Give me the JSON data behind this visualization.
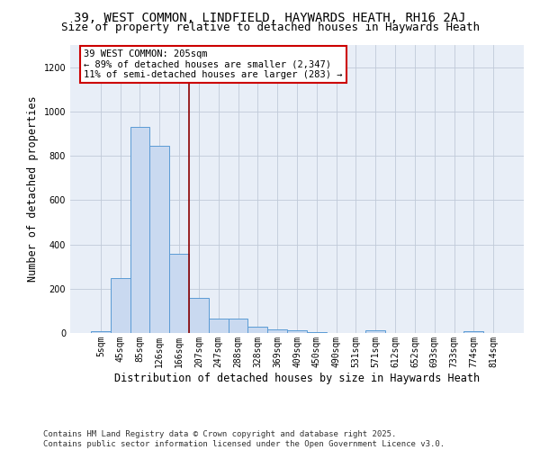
{
  "title_line1": "39, WEST COMMON, LINDFIELD, HAYWARDS HEATH, RH16 2AJ",
  "title_line2": "Size of property relative to detached houses in Haywards Heath",
  "xlabel": "Distribution of detached houses by size in Haywards Heath",
  "ylabel": "Number of detached properties",
  "categories": [
    "5sqm",
    "45sqm",
    "85sqm",
    "126sqm",
    "166sqm",
    "207sqm",
    "247sqm",
    "288sqm",
    "328sqm",
    "369sqm",
    "409sqm",
    "450sqm",
    "490sqm",
    "531sqm",
    "571sqm",
    "612sqm",
    "652sqm",
    "693sqm",
    "733sqm",
    "774sqm",
    "814sqm"
  ],
  "values": [
    8,
    248,
    930,
    845,
    358,
    158,
    65,
    63,
    30,
    15,
    12,
    5,
    0,
    0,
    12,
    0,
    0,
    0,
    0,
    10,
    0
  ],
  "bar_color": "#c9d9f0",
  "bar_edge_color": "#5b9bd5",
  "vline_x": 4.5,
  "vline_color": "#8b0000",
  "annotation_text": "39 WEST COMMON: 205sqm\n← 89% of detached houses are smaller (2,347)\n11% of semi-detached houses are larger (283) →",
  "annotation_box_color": "white",
  "annotation_box_edge": "#cc0000",
  "ylim": [
    0,
    1300
  ],
  "yticks": [
    0,
    200,
    400,
    600,
    800,
    1000,
    1200
  ],
  "grid_color": "#c0cad8",
  "bg_color": "#e8eef7",
  "footer_line1": "Contains HM Land Registry data © Crown copyright and database right 2025.",
  "footer_line2": "Contains public sector information licensed under the Open Government Licence v3.0.",
  "title_fontsize": 10,
  "subtitle_fontsize": 9,
  "axis_label_fontsize": 8.5,
  "tick_fontsize": 7,
  "annotation_fontsize": 7.5,
  "footer_fontsize": 6.5
}
